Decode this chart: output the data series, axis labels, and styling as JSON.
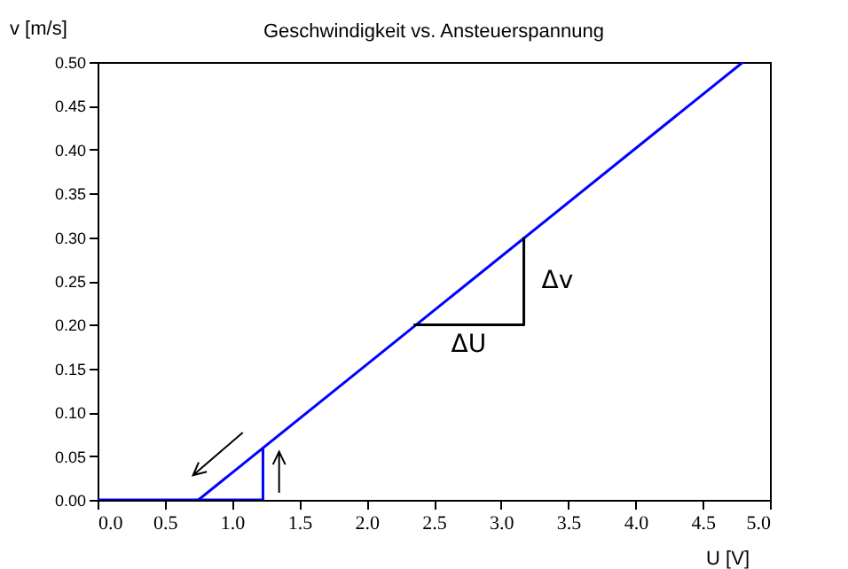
{
  "chart_data": {
    "type": "line",
    "title": "Geschwindigkeit vs. Ansteuerspannung",
    "xlabel": "U [V]",
    "ylabel": "v [m/s]",
    "series": [
      {
        "color": "#0000ff",
        "x": [
          0.75,
          4.8
        ],
        "values": [
          0,
          0.5
        ]
      },
      {
        "color": "#0000ff",
        "x": [
          0,
          1.23,
          1.23
        ],
        "values": [
          0,
          0,
          0.06
        ]
      },
      {
        "color": "#000000",
        "x": [
          2.35,
          3.17,
          3.17
        ],
        "values": [
          0.2,
          0.2,
          0.3
        ]
      }
    ],
    "annotations": [
      "ΔU",
      "Δv"
    ],
    "xlim": [
      0,
      5
    ],
    "ylim": [
      0,
      0.5
    ],
    "xticks": [
      {
        "value": 0,
        "label": "0.0"
      },
      {
        "value": 0.5,
        "label": "0.5"
      },
      {
        "value": 1,
        "label": "1.0"
      },
      {
        "value": 1.5,
        "label": "1.5"
      },
      {
        "value": 2,
        "label": "2.0"
      },
      {
        "value": 2.5,
        "label": "2.5"
      },
      {
        "value": 3,
        "label": "3.0"
      },
      {
        "value": 3.5,
        "label": "3.5"
      },
      {
        "value": 4,
        "label": "4.0"
      },
      {
        "value": 4.5,
        "label": "4.5"
      },
      {
        "value": 5,
        "label": "5.0"
      }
    ],
    "yticks": [
      {
        "value": 0,
        "label": "0.00"
      },
      {
        "value": 0.05,
        "label": "0.05"
      },
      {
        "value": 0.1,
        "label": "0.10"
      },
      {
        "value": 0.15,
        "label": "0.15"
      },
      {
        "value": 0.2,
        "label": "0.20"
      },
      {
        "value": 0.25,
        "label": "0.25"
      },
      {
        "value": 0.3,
        "label": "0.30"
      },
      {
        "value": 0.35,
        "label": "0.35"
      },
      {
        "value": 0.4,
        "label": "0.40"
      },
      {
        "value": 0.45,
        "label": "0.45"
      },
      {
        "value": 0.5,
        "label": "0.50"
      }
    ],
    "grid": false,
    "marker": "none",
    "line_style": "solid"
  }
}
